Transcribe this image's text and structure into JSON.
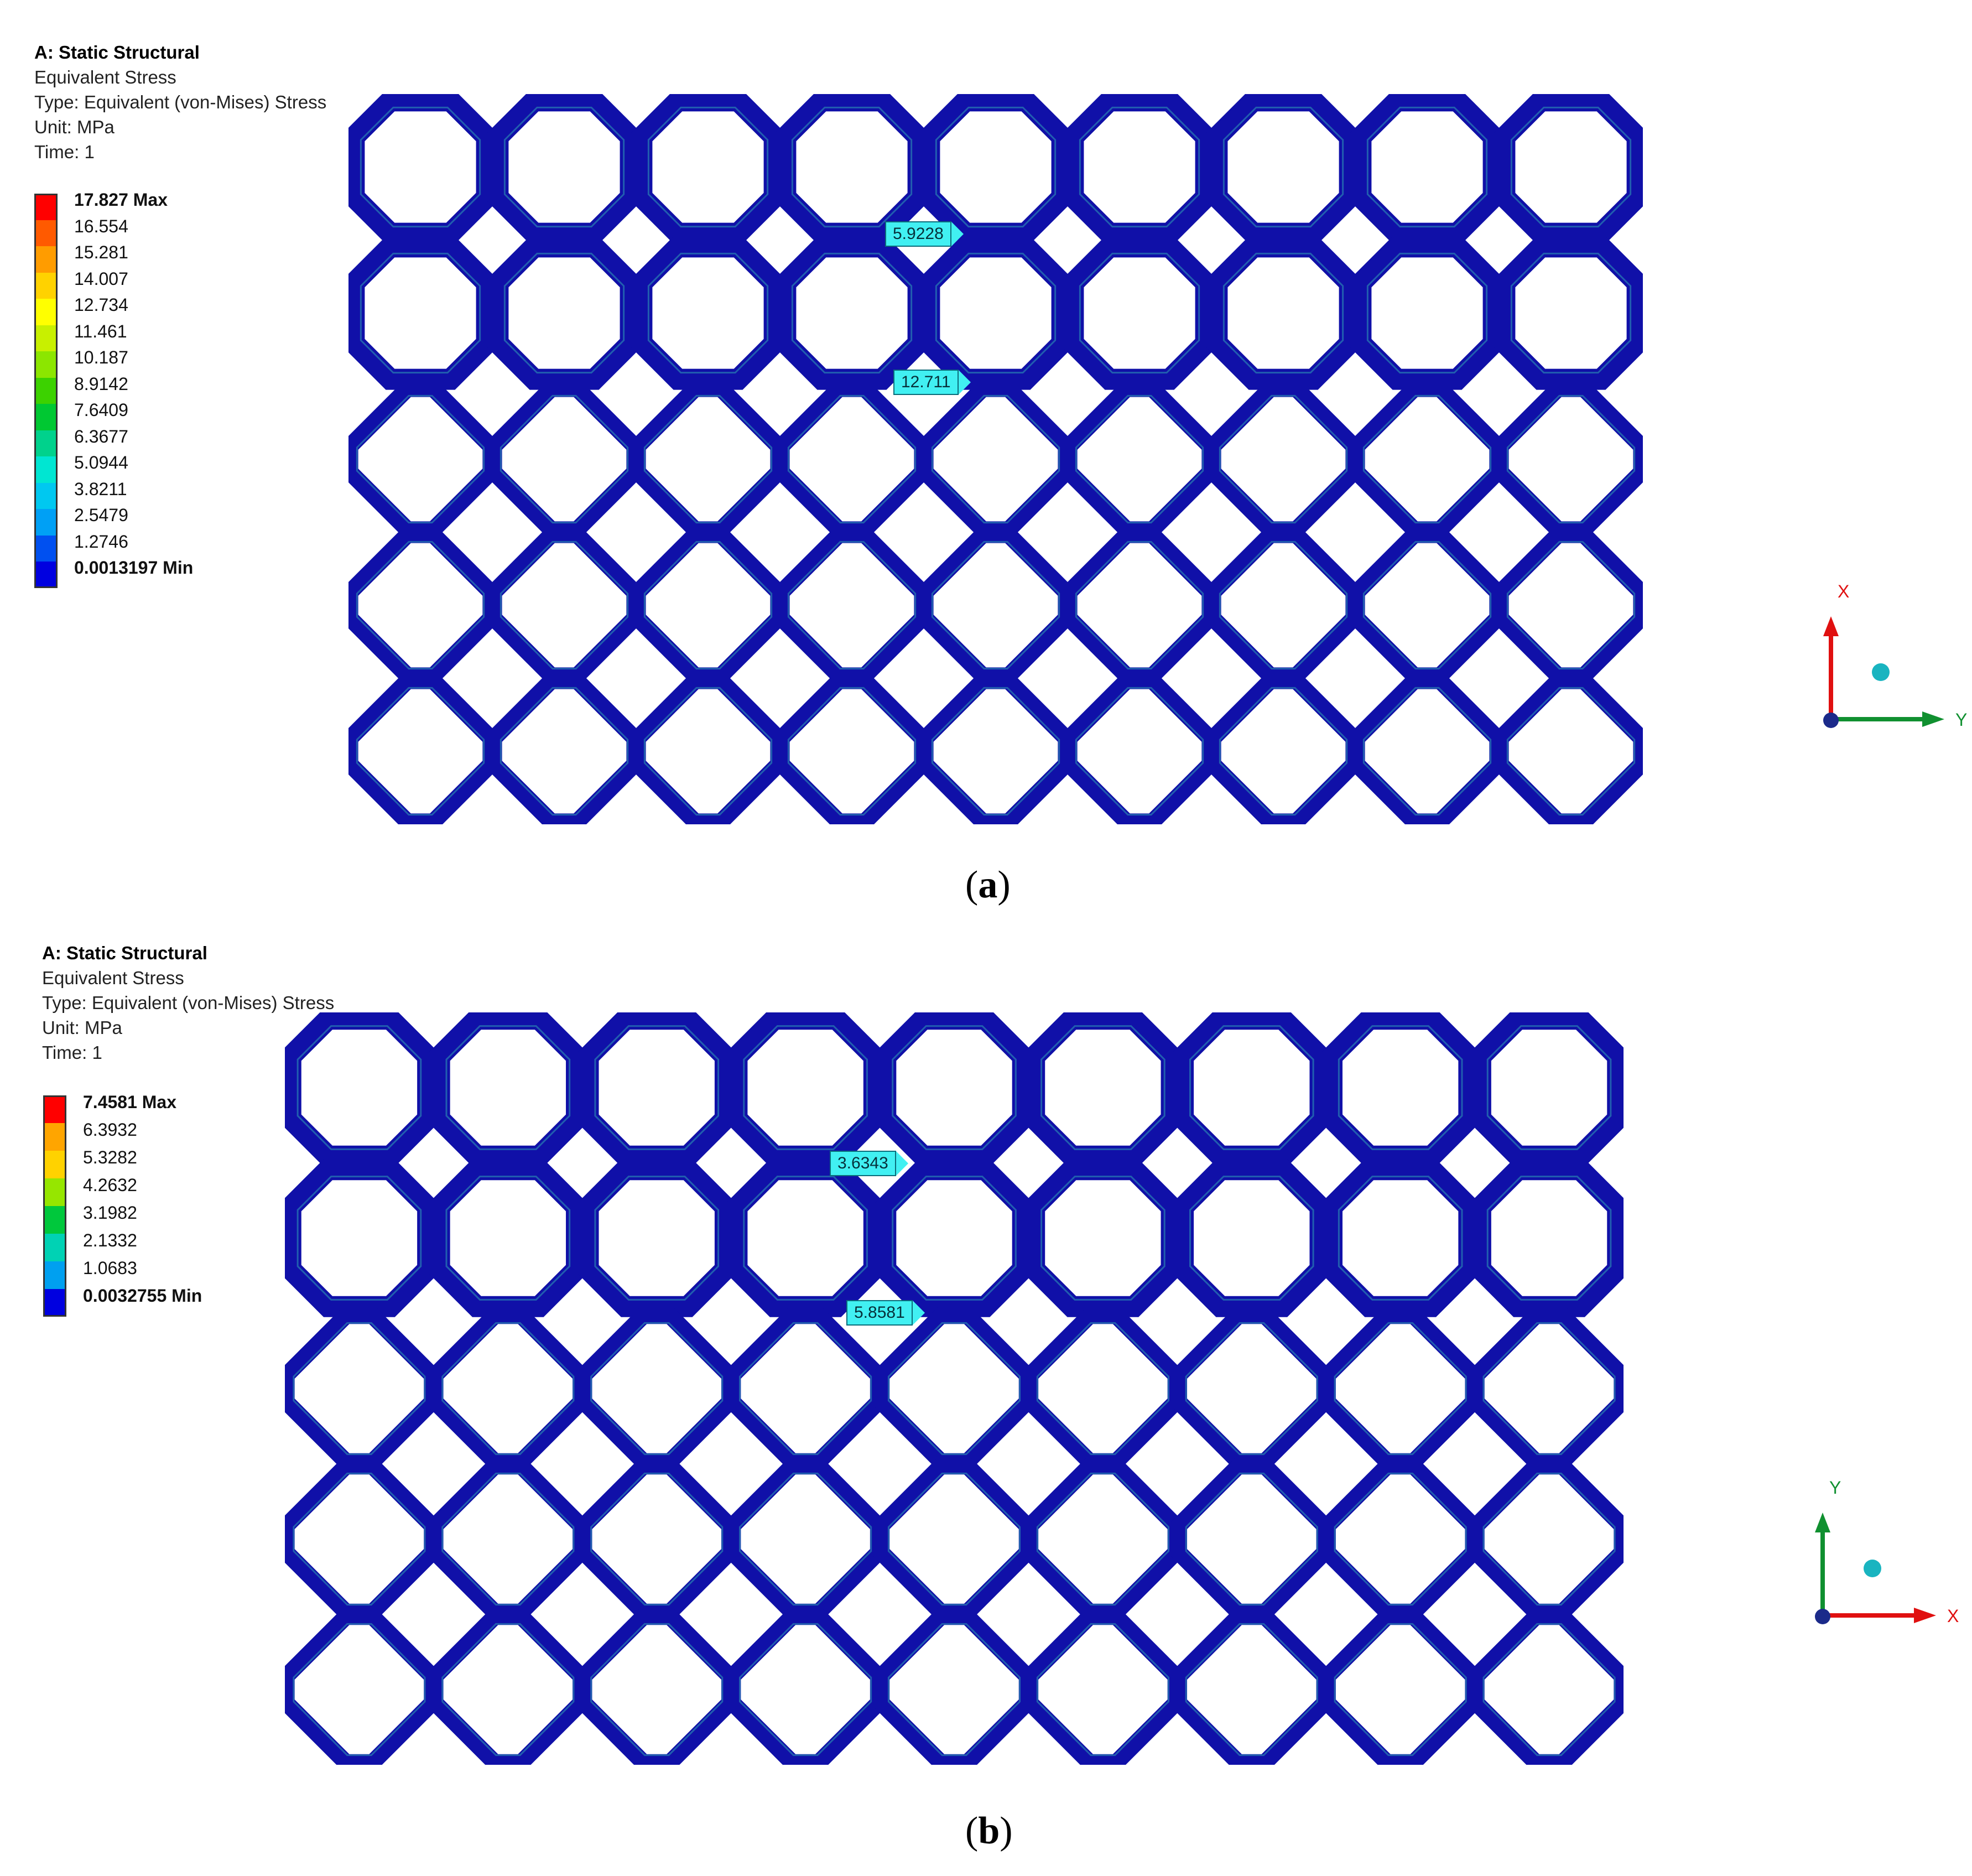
{
  "panels": [
    {
      "id": "a",
      "info": {
        "title": "A: Static Structural",
        "lines": [
          "Equivalent Stress",
          "Type: Equivalent (von-Mises) Stress",
          "Unit: MPa",
          "Time: 1"
        ]
      },
      "legend": [
        {
          "value": "17.827 Max",
          "color": "#ff0000"
        },
        {
          "value": "16.554",
          "color": "#ff5a00"
        },
        {
          "value": "15.281",
          "color": "#ff9c00"
        },
        {
          "value": "14.007",
          "color": "#ffd200"
        },
        {
          "value": "12.734",
          "color": "#ffff00"
        },
        {
          "value": "11.461",
          "color": "#c8f000"
        },
        {
          "value": "10.187",
          "color": "#8ce600"
        },
        {
          "value": "8.9142",
          "color": "#3cd200"
        },
        {
          "value": "7.6409",
          "color": "#00c832"
        },
        {
          "value": "6.3677",
          "color": "#00d28c"
        },
        {
          "value": "5.0944",
          "color": "#00e6d2"
        },
        {
          "value": "3.8211",
          "color": "#00c8f0"
        },
        {
          "value": "2.5479",
          "color": "#00a0f5"
        },
        {
          "value": "1.2746",
          "color": "#0050f0"
        },
        {
          "value": "0.0013197 Min",
          "color": "#0000e0"
        }
      ],
      "probes": [
        {
          "value": "5.9228"
        },
        {
          "value": "12.711"
        }
      ],
      "triad": {
        "up": "X",
        "right": "Y"
      },
      "caption_letter": "a"
    },
    {
      "id": "b",
      "info": {
        "title": "A: Static Structural",
        "lines": [
          "Equivalent Stress",
          "Type: Equivalent (von-Mises) Stress",
          "Unit: MPa",
          "Time: 1"
        ]
      },
      "legend": [
        {
          "value": "7.4581 Max",
          "color": "#ff0000"
        },
        {
          "value": "6.3932",
          "color": "#ffa500"
        },
        {
          "value": "5.3282",
          "color": "#ffd200"
        },
        {
          "value": "4.2632",
          "color": "#96e600"
        },
        {
          "value": "3.1982",
          "color": "#00c83c"
        },
        {
          "value": "2.1332",
          "color": "#00d2b4"
        },
        {
          "value": "1.0683",
          "color": "#00a0f0"
        },
        {
          "value": "0.0032755 Min",
          "color": "#0000e0"
        }
      ],
      "probes": [
        {
          "value": "3.6343"
        },
        {
          "value": "5.8581"
        }
      ],
      "triad": {
        "up": "Y",
        "right": "X"
      },
      "caption_letter": "b"
    }
  ],
  "colors": {
    "structure": "#1010a8",
    "accent": "#2f9eb4",
    "probe": "#41f0f2"
  }
}
